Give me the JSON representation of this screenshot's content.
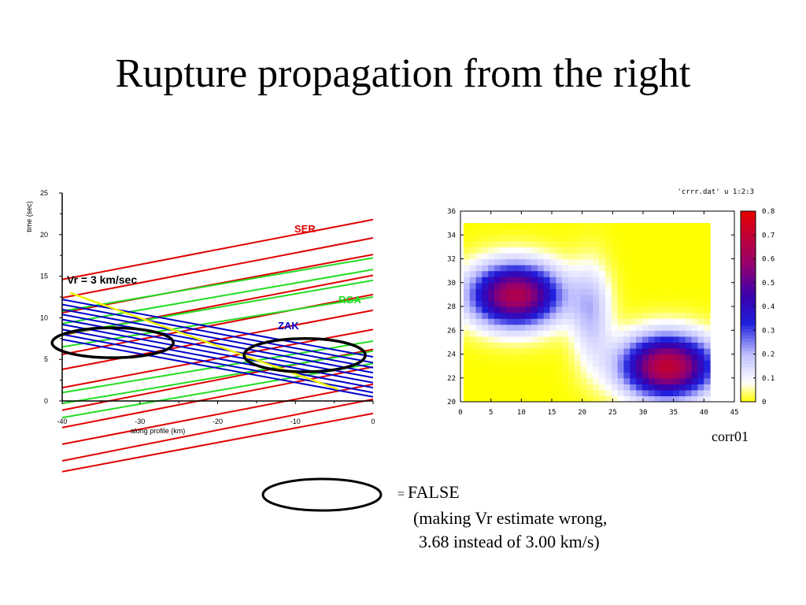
{
  "slide": {
    "title": "Rupture propagation from the right"
  },
  "chart_data": [
    {
      "type": "line",
      "xlabel": "along profile (km)",
      "ylabel": "time (sec)",
      "xlim": [
        -40,
        0
      ],
      "ylim": [
        0,
        25
      ],
      "xticks": [
        -40,
        -30,
        -20,
        -10,
        0
      ],
      "yticks": [
        0,
        5,
        10,
        15,
        20,
        25
      ],
      "annotations": {
        "vr_label": "Vr = 3 km/sec",
        "ser_label": "SER",
        "rga_label": "RGA",
        "zak_label": "ZAK"
      },
      "colors": {
        "SER": "#e00000",
        "RGA": "#22dd22",
        "ZAK": "#0000cc",
        "Vr": "#eeee00",
        "ellipse": "#000000"
      },
      "series": [
        {
          "name": "SER",
          "lines": [
            {
              "x": [
                -40,
                0
              ],
              "y": [
                14.6,
                21.8
              ]
            },
            {
              "x": [
                -40,
                0
              ],
              "y": [
                12.4,
                19.6
              ]
            },
            {
              "x": [
                -40,
                0
              ],
              "y": [
                10.6,
                17.6
              ]
            },
            {
              "x": [
                -40,
                0
              ],
              "y": [
                7.9,
                15.1
              ]
            },
            {
              "x": [
                -40,
                0
              ],
              "y": [
                5.6,
                12.8
              ]
            },
            {
              "x": [
                -40,
                0
              ],
              "y": [
                3.8,
                10.9
              ]
            },
            {
              "x": [
                -40,
                0
              ],
              "y": [
                1.6,
                8.6
              ]
            },
            {
              "x": [
                -40,
                0
              ],
              "y": [
                -1.1,
                6.2
              ]
            },
            {
              "x": [
                -40,
                0
              ],
              "y": [
                -3.2,
                4.1
              ]
            },
            {
              "x": [
                -40,
                0
              ],
              "y": [
                -5.2,
                2.0
              ]
            },
            {
              "x": [
                -40,
                0
              ],
              "y": [
                -7.2,
                0.2
              ]
            },
            {
              "x": [
                -40,
                0
              ],
              "y": [
                -8.5,
                -1.5
              ]
            }
          ]
        },
        {
          "name": "RGA",
          "lines": [
            {
              "x": [
                -40,
                0
              ],
              "y": [
                10.8,
                17.2
              ]
            },
            {
              "x": [
                -40,
                0
              ],
              "y": [
                9.3,
                15.8
              ]
            },
            {
              "x": [
                -40,
                0
              ],
              "y": [
                8.0,
                14.5
              ]
            },
            {
              "x": [
                -40,
                0
              ],
              "y": [
                6.5,
                12.5
              ]
            },
            {
              "x": [
                -40,
                0
              ],
              "y": [
                1.0,
                7.2
              ]
            },
            {
              "x": [
                -40,
                0
              ],
              "y": [
                -0.3,
                6.0
              ]
            },
            {
              "x": [
                -40,
                0
              ],
              "y": [
                -2.0,
                4.5
              ]
            }
          ]
        },
        {
          "name": "ZAK",
          "lines": [
            {
              "x": [
                -40,
                0
              ],
              "y": [
                12.2,
                5.3
              ]
            },
            {
              "x": [
                -40,
                0
              ],
              "y": [
                11.6,
                4.6
              ]
            },
            {
              "x": [
                -40,
                0
              ],
              "y": [
                11.0,
                4.0
              ]
            },
            {
              "x": [
                -40,
                0
              ],
              "y": [
                10.4,
                3.4
              ]
            },
            {
              "x": [
                -40,
                0
              ],
              "y": [
                9.8,
                2.8
              ]
            },
            {
              "x": [
                -40,
                0
              ],
              "y": [
                9.2,
                2.2
              ]
            },
            {
              "x": [
                -40,
                0
              ],
              "y": [
                8.6,
                1.6
              ]
            },
            {
              "x": [
                -40,
                0
              ],
              "y": [
                8.0,
                1.0
              ]
            },
            {
              "x": [
                -40,
                0
              ],
              "y": [
                7.4,
                0.5
              ]
            }
          ]
        },
        {
          "name": "Vr",
          "lines": [
            {
              "x": [
                -39,
                -4.5
              ],
              "y": [
                13.0,
                1.4
              ]
            }
          ]
        }
      ],
      "ellipses": [
        {
          "cx": -33.5,
          "cy": 7.0,
          "rx": 7.8,
          "ry": 1.8
        },
        {
          "cx": -8.8,
          "cy": 5.5,
          "rx": 7.8,
          "ry": 2.0
        }
      ]
    },
    {
      "type": "heatmap",
      "title": "'crrr.dat' u 1:2:3",
      "xlim": [
        0,
        45
      ],
      "ylim": [
        20,
        36
      ],
      "xticks": [
        0,
        5,
        10,
        15,
        20,
        25,
        30,
        35,
        40,
        45
      ],
      "yticks": [
        20,
        22,
        24,
        26,
        28,
        30,
        32,
        34,
        36
      ],
      "colorbar": {
        "range": [
          0,
          0.8
        ],
        "ticks": [
          0,
          0.1,
          0.2,
          0.3,
          0.4,
          0.5,
          0.6,
          0.7,
          0.8
        ]
      },
      "data_extent": {
        "x": [
          0.5,
          41
        ],
        "y": [
          20,
          35
        ]
      },
      "peaks": [
        {
          "x": 9,
          "y": 29,
          "value": 0.65
        },
        {
          "x": 34,
          "y": 23,
          "value": 0.7
        }
      ],
      "caption": "corr01"
    }
  ],
  "legend_note": {
    "eq": "=",
    "line1": "FALSE",
    "line2": "(making Vr estimate wrong,",
    "line3": "3.68 instead of 3.00 km/s)"
  }
}
